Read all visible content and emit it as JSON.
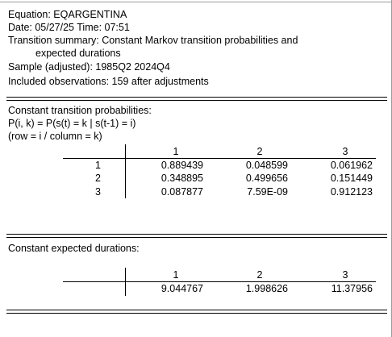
{
  "header": {
    "equation": "Equation: EQARGENTINA",
    "date_time": "Date: 05/27/25   Time: 07:51",
    "summary": "Transition summary: Constant Markov transition probabilities and",
    "summary_cont": "expected durations",
    "sample": "Sample (adjusted): 1985Q2 2024Q4",
    "observations": "Included observations: 159 after adjustments"
  },
  "probabilities": {
    "title": "Constant transition probabilities:",
    "formula": "P(i, k) = P(s(t) = k | s(t-1) = i)",
    "note": "(row = i / column = k)",
    "columns": [
      "1",
      "2",
      "3"
    ],
    "row_labels": [
      "1",
      "2",
      "3"
    ],
    "rows": [
      [
        "0.889439",
        "0.048599",
        "0.061962"
      ],
      [
        "0.348895",
        "0.499656",
        "0.151449"
      ],
      [
        "0.087877",
        "7.59E-09",
        "0.912123"
      ]
    ]
  },
  "durations": {
    "title": "Constant expected durations:",
    "columns": [
      "1",
      "2",
      "3"
    ],
    "rows": [
      [
        "9.044767",
        "1.998626",
        "11.37956"
      ]
    ]
  }
}
